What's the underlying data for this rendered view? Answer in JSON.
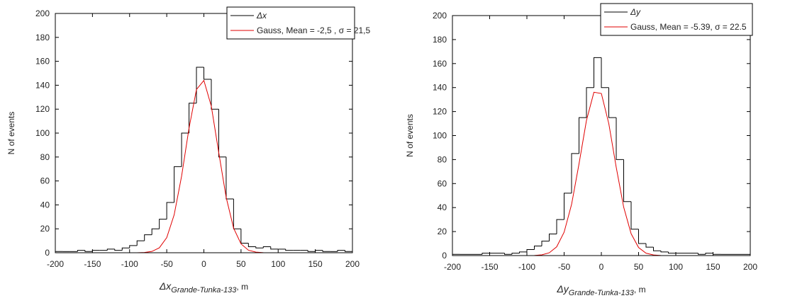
{
  "chart_data": [
    {
      "type": "histogram",
      "ylabel": "N of events",
      "xlabel": {
        "main": "Δx",
        "sub": "Grande-Tunka-133",
        "unit": ", m"
      },
      "legend": "upper right",
      "xlim": [
        -200,
        200
      ],
      "ylim": [
        0,
        200
      ],
      "xticks": [
        -200,
        -150,
        -100,
        -50,
        0,
        50,
        100,
        150,
        200
      ],
      "yticks": [
        0,
        20,
        40,
        60,
        80,
        100,
        120,
        140,
        160,
        180,
        200
      ],
      "name": "Δx",
      "color": "#000000",
      "bins": [
        -200,
        -190,
        -180,
        -170,
        -160,
        -150,
        -140,
        -130,
        -120,
        -110,
        -100,
        -90,
        -80,
        -70,
        -60,
        -50,
        -40,
        -30,
        -20,
        -10,
        0,
        10,
        20,
        30,
        40,
        50,
        60,
        70,
        80,
        90,
        100,
        110,
        120,
        130,
        140,
        150,
        160,
        170,
        180,
        190,
        200
      ],
      "counts": [
        1,
        1,
        1,
        2,
        1,
        2,
        2,
        3,
        2,
        4,
        6,
        10,
        15,
        20,
        28,
        42,
        72,
        100,
        125,
        155,
        145,
        120,
        80,
        45,
        20,
        8,
        5,
        4,
        5,
        3,
        3,
        2,
        2,
        2,
        1,
        2,
        1,
        1,
        2,
        1
      ],
      "fit": {
        "name": "Gauss, Mean = -2,5 , σ = 21,5",
        "color": "#e00000",
        "x": [
          -200,
          -100,
          -90,
          -80,
          -70,
          -60,
          -50,
          -40,
          -30,
          -20,
          -10,
          0,
          10,
          20,
          30,
          40,
          50,
          60,
          70,
          80,
          90,
          100,
          200
        ],
        "values": [
          0,
          0,
          0,
          0.2,
          1.1,
          4.1,
          12.6,
          31.7,
          64,
          104.1,
          136.4,
          144,
          122.5,
          83.8,
          46.3,
          20.6,
          7.4,
          2.1,
          0.5,
          0.1,
          0,
          0,
          0
        ]
      }
    },
    {
      "type": "histogram",
      "ylabel": "N of events",
      "xlabel": {
        "main": "Δy",
        "sub": "Grande-Tunka-133",
        "unit": ", m"
      },
      "legend": "upper right",
      "xlim": [
        -200,
        200
      ],
      "ylim": [
        0,
        200
      ],
      "xticks": [
        -200,
        -150,
        -100,
        -50,
        0,
        50,
        100,
        150,
        200
      ],
      "yticks": [
        0,
        20,
        40,
        60,
        80,
        100,
        120,
        140,
        160,
        180,
        200
      ],
      "name": "Δy",
      "color": "#000000",
      "bins": [
        -200,
        -190,
        -180,
        -170,
        -160,
        -150,
        -140,
        -130,
        -120,
        -110,
        -100,
        -90,
        -80,
        -70,
        -60,
        -50,
        -40,
        -30,
        -20,
        -10,
        0,
        10,
        20,
        30,
        40,
        50,
        60,
        70,
        80,
        90,
        100,
        110,
        120,
        130,
        140,
        150,
        160,
        170,
        180,
        190,
        200
      ],
      "counts": [
        1,
        1,
        1,
        1,
        2,
        2,
        2,
        1,
        2,
        3,
        5,
        8,
        12,
        18,
        30,
        52,
        85,
        115,
        140,
        165,
        140,
        115,
        80,
        45,
        22,
        10,
        7,
        4,
        3,
        2,
        2,
        2,
        2,
        1,
        2,
        1,
        1,
        1,
        1,
        1
      ],
      "fit": {
        "name": "Gauss, Mean = -5.39, σ = 22.5",
        "color": "#e00000",
        "x": [
          -200,
          -100,
          -90,
          -80,
          -70,
          -60,
          -50,
          -40,
          -30,
          -20,
          -10,
          0,
          10,
          20,
          30,
          40,
          50,
          60,
          70,
          80,
          90,
          100,
          200
        ],
        "values": [
          0,
          0,
          0.1,
          0.6,
          2.3,
          7.3,
          19.5,
          42.6,
          76.4,
          112.6,
          136.1,
          135.1,
          110,
          73.5,
          40.3,
          18.2,
          6.7,
          2,
          0.5,
          0.1,
          0,
          0,
          0
        ]
      }
    }
  ]
}
